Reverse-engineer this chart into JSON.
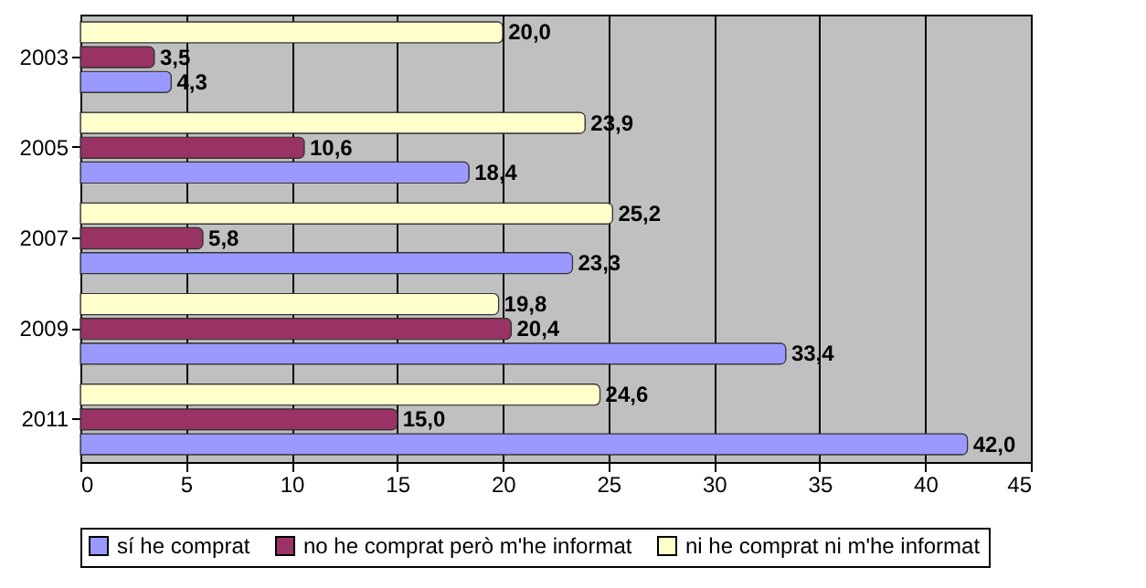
{
  "chart_data": {
    "type": "bar",
    "orientation": "horizontal",
    "categories": [
      "2003",
      "2005",
      "2007",
      "2009",
      "2011"
    ],
    "series": [
      {
        "name": "sí he comprat",
        "color": "#9999ff",
        "values": [
          4.3,
          18.4,
          23.3,
          33.4,
          42.0
        ],
        "value_labels": [
          "4,3",
          "18,4",
          "23,3",
          "33,4",
          "42,0"
        ]
      },
      {
        "name": "no he comprat però m'he informat",
        "color": "#993366",
        "values": [
          3.5,
          10.6,
          5.8,
          20.4,
          15.0
        ],
        "value_labels": [
          "3,5",
          "10,6",
          "5,8",
          "20,4",
          "15,0"
        ]
      },
      {
        "name": "ni he comprat ni m'he informat",
        "color": "#ffffcc",
        "values": [
          20.0,
          23.9,
          25.2,
          19.8,
          24.6
        ],
        "value_labels": [
          "20,0",
          "23,9",
          "25,2",
          "19,8",
          "24,6"
        ]
      }
    ],
    "xlim": [
      0,
      45
    ],
    "xticks": [
      0,
      5,
      10,
      15,
      20,
      25,
      30,
      35,
      40,
      45
    ],
    "grid": "x",
    "legend": "bottom"
  }
}
